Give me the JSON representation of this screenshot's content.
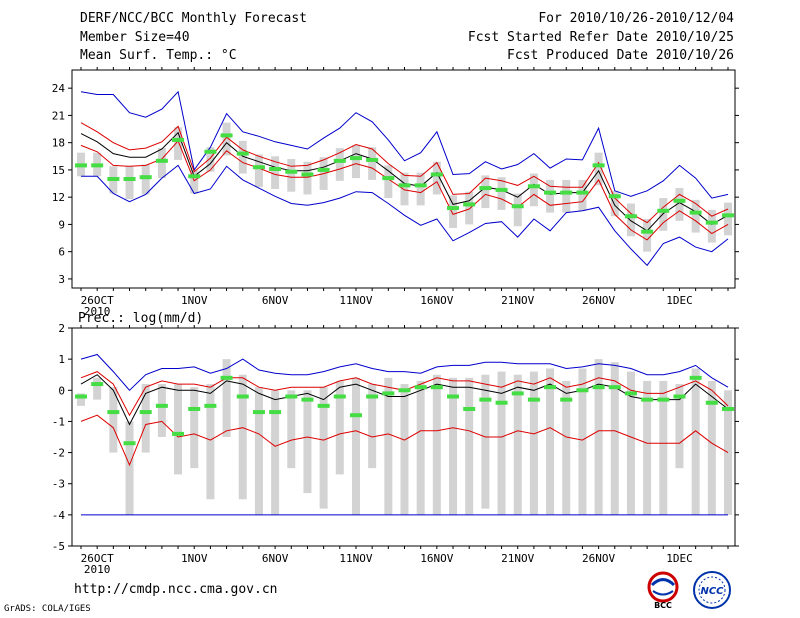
{
  "header": {
    "title": "DERF/NCC/BCC Monthly Forecast",
    "member": "Member Size=40",
    "variable": "Mean Surf. Temp.: °C",
    "period": "For 2010/10/26-2010/12/04",
    "started": "Fcst Started Refer Date 2010/10/25",
    "produced": "Fcst Produced Date 2010/10/26"
  },
  "footer": {
    "url": "http://cmdp.ncc.cma.gov.cn",
    "grads": "GrADS: COLA/IGES",
    "logo1_text": "BCC",
    "logo2_text": "NCC"
  },
  "colors": {
    "envelope": "#0000cc",
    "spread": "#dd0000",
    "mean": "#000000",
    "obs": "#44dd44",
    "bar": "#d3d3d3"
  },
  "chart_data": [
    {
      "type": "line",
      "title": "Mean Surf. Temp.: °C",
      "ylim": [
        2,
        26
      ],
      "yticks": [
        3,
        6,
        9,
        12,
        15,
        18,
        21,
        24
      ],
      "x_range": [
        0,
        40
      ],
      "xticks": [
        {
          "x": 1,
          "label": "26OCT",
          "sub": "2010"
        },
        {
          "x": 7,
          "label": "1NOV"
        },
        {
          "x": 12,
          "label": "6NOV"
        },
        {
          "x": 17,
          "label": "11NOV"
        },
        {
          "x": 22,
          "label": "16NOV"
        },
        {
          "x": 27,
          "label": "21NOV"
        },
        {
          "x": 32,
          "label": "26NOV"
        },
        {
          "x": 37,
          "label": "1DEC"
        }
      ],
      "series": [
        {
          "name": "max",
          "color": "#0000cc",
          "values": [
            23.6,
            23.3,
            23.3,
            21.3,
            20.8,
            21.7,
            23.6,
            15,
            17.5,
            21.2,
            19.2,
            18.7,
            18.1,
            17.7,
            17.3,
            18.5,
            19.6,
            21.3,
            20.3,
            18.3,
            16,
            16.9,
            19.2,
            14.5,
            14.6,
            15.9,
            15.1,
            15.6,
            16.8,
            15.2,
            16.2,
            16.1,
            19.6,
            12.7,
            12.1,
            12.7,
            13.8,
            15.5,
            14.1,
            11.9,
            12.3
          ]
        },
        {
          "name": "upper",
          "color": "#dd0000",
          "values": [
            20.2,
            19.2,
            18,
            17.2,
            17.4,
            18.1,
            19.8,
            14.8,
            16.3,
            18.6,
            17.2,
            16.5,
            15.9,
            15.4,
            15.5,
            16.1,
            16.9,
            17.8,
            17.3,
            15.7,
            14.4,
            14.3,
            15.8,
            12.3,
            12.4,
            14.1,
            13.8,
            13.3,
            14.3,
            13.2,
            13.1,
            13.1,
            15.8,
            11.9,
            10.2,
            9.2,
            10.9,
            12.3,
            11.3,
            9.9,
            10.7
          ]
        },
        {
          "name": "mean",
          "color": "#000000",
          "values": [
            19,
            18.1,
            16.8,
            16.4,
            16.4,
            17.3,
            19.1,
            14.3,
            15.7,
            18,
            16.5,
            15.9,
            15.3,
            14.9,
            14.9,
            15.3,
            16,
            16.8,
            16.2,
            14.9,
            13.5,
            13.2,
            14.7,
            11.2,
            11.6,
            13.1,
            12.8,
            12,
            13.4,
            12.3,
            12.5,
            12.5,
            14.9,
            11.1,
            9.4,
            8.3,
            10.2,
            11.4,
            10.4,
            9,
            10
          ]
        },
        {
          "name": "lower",
          "color": "#dd0000",
          "values": [
            17.7,
            17,
            15.5,
            15.4,
            15.5,
            16.2,
            18.2,
            13.8,
            15,
            17.1,
            15.8,
            15.2,
            14.5,
            14.2,
            14.2,
            14.6,
            15.1,
            15.7,
            15.2,
            14,
            12.8,
            12.5,
            13.7,
            10.1,
            10.7,
            12.3,
            11.8,
            10.9,
            12.3,
            11.1,
            11.3,
            11.5,
            13.9,
            10.1,
            8.4,
            7.3,
            9.2,
            10.5,
            9.4,
            8,
            9
          ]
        },
        {
          "name": "min",
          "color": "#0000cc",
          "values": [
            14.3,
            14.3,
            12.4,
            11.5,
            12.3,
            14.1,
            15.5,
            12.4,
            12.9,
            15.4,
            13.9,
            13,
            12.1,
            11.3,
            11.1,
            11.4,
            11.9,
            12.6,
            12.5,
            11.3,
            10,
            8.9,
            9.6,
            7.2,
            8.1,
            9.1,
            9.3,
            7.6,
            9.6,
            8.3,
            10.3,
            10.5,
            10.9,
            8.3,
            6.3,
            4.5,
            6.9,
            7.6,
            6.5,
            6,
            7.4
          ]
        }
      ],
      "observations": [
        15.5,
        15.5,
        14,
        14,
        14.2,
        16,
        18.3,
        14.3,
        17,
        18.8,
        16.8,
        15.3,
        15.1,
        14.8,
        14.5,
        15,
        16,
        16.3,
        16.1,
        14.1,
        13.3,
        13.3,
        14.5,
        10.8,
        11.2,
        13,
        12.8,
        11,
        13.2,
        12.5,
        12.5,
        12.5,
        15.5,
        12.1,
        9.9,
        8.2,
        10.5,
        11.6,
        10.3,
        9.2,
        10
      ]
    },
    {
      "type": "line",
      "title": "Prec.: log(mm/d)",
      "ylim": [
        -5,
        2
      ],
      "yticks": [
        -5,
        -4,
        -3,
        -2,
        -1,
        0,
        1,
        2
      ],
      "x_range": [
        0,
        40
      ],
      "floor": -4,
      "xticks": [
        {
          "x": 1,
          "label": "26OCT",
          "sub": "2010"
        },
        {
          "x": 7,
          "label": "1NOV"
        },
        {
          "x": 12,
          "label": "6NOV"
        },
        {
          "x": 17,
          "label": "11NOV"
        },
        {
          "x": 22,
          "label": "16NOV"
        },
        {
          "x": 27,
          "label": "21NOV"
        },
        {
          "x": 32,
          "label": "26NOV"
        },
        {
          "x": 37,
          "label": "1DEC"
        }
      ],
      "series": [
        {
          "name": "max",
          "color": "#0000cc",
          "values": [
            1,
            1.15,
            0.6,
            0,
            0.5,
            0.7,
            0.7,
            0.75,
            0.55,
            0.7,
            1,
            0.65,
            0.55,
            0.5,
            0.5,
            0.6,
            0.75,
            0.85,
            0.7,
            0.6,
            0.6,
            0.55,
            0.75,
            0.8,
            0.8,
            0.9,
            0.9,
            0.85,
            0.85,
            0.85,
            0.7,
            0.75,
            0.85,
            0.8,
            0.7,
            0.5,
            0.5,
            0.6,
            0.8,
            0.4,
            0.1
          ]
        },
        {
          "name": "upper",
          "color": "#dd0000",
          "values": [
            0.4,
            0.6,
            0.2,
            -0.8,
            0.1,
            0.3,
            0.2,
            0.2,
            0.1,
            0.4,
            0.4,
            0.1,
            0,
            0.1,
            0.1,
            0.1,
            0.3,
            0.4,
            0.2,
            0.1,
            0,
            0.2,
            0.4,
            0.3,
            0.3,
            0.2,
            0.1,
            0.3,
            0.2,
            0.4,
            0.1,
            0.2,
            0.4,
            0.3,
            0,
            -0.1,
            -0.1,
            0.1,
            0.3,
            0,
            -0.5
          ]
        },
        {
          "name": "mean",
          "color": "#000000",
          "values": [
            0.2,
            0.5,
            0,
            -1.1,
            -0.1,
            0.1,
            0,
            0,
            -0.1,
            0.3,
            0.2,
            -0.1,
            -0.3,
            -0.2,
            -0.1,
            -0.3,
            0.1,
            0.2,
            0,
            -0.2,
            -0.2,
            0,
            0.2,
            0.1,
            0.1,
            0,
            -0.1,
            0.1,
            0,
            0.2,
            -0.1,
            0,
            0.2,
            0.1,
            -0.2,
            -0.3,
            -0.3,
            -0.3,
            0.2,
            -0.2,
            -0.6
          ]
        },
        {
          "name": "lower",
          "color": "#dd0000",
          "values": [
            -1,
            -0.8,
            -1.2,
            -2.4,
            -1.1,
            -1,
            -1.5,
            -1.4,
            -1.6,
            -1.3,
            -1.2,
            -1.4,
            -1.8,
            -1.6,
            -1.5,
            -1.6,
            -1.4,
            -1.3,
            -1.5,
            -1.4,
            -1.6,
            -1.3,
            -1.3,
            -1.2,
            -1.3,
            -1.5,
            -1.5,
            -1.3,
            -1.4,
            -1.2,
            -1.5,
            -1.6,
            -1.3,
            -1.3,
            -1.5,
            -1.7,
            -1.7,
            -1.7,
            -1.3,
            -1.7,
            -2
          ]
        },
        {
          "name": "min",
          "color": "#0000cc",
          "values": [
            -4,
            -4,
            -4,
            -4,
            -4,
            -4,
            -4,
            -4,
            -4,
            -4,
            -4,
            -4,
            -4,
            -4,
            -4,
            -4,
            -4,
            -4,
            -4,
            -4,
            -4,
            -4,
            -4,
            -4,
            -4,
            -4,
            -4,
            -4,
            -4,
            -4,
            -4,
            -4,
            -4,
            -4,
            -4,
            -4,
            -4,
            -4,
            -4,
            -4,
            -4
          ]
        }
      ],
      "observations": [
        -0.2,
        0.2,
        -0.7,
        -1.7,
        -0.7,
        -0.5,
        -1.4,
        -0.6,
        -0.5,
        0.4,
        -0.2,
        -0.7,
        -0.7,
        -0.2,
        -0.3,
        -0.5,
        -0.2,
        -0.8,
        -0.2,
        -0.1,
        0,
        0.1,
        0.1,
        -0.2,
        -0.6,
        -0.3,
        -0.4,
        -0.1,
        -0.3,
        0.1,
        -0.3,
        0,
        0.1,
        0.1,
        -0.1,
        -0.3,
        -0.3,
        -0.2,
        0.4,
        -0.4,
        -0.6
      ],
      "bar_bottoms": [
        -0.5,
        -0.3,
        -2,
        -4,
        -2,
        -1.5,
        -2.7,
        -2.5,
        -3.5,
        -1.5,
        -3.5,
        -4,
        -4,
        -2.5,
        -3.3,
        -3.8,
        -2.7,
        -4,
        -2.5,
        -4,
        -4,
        -4,
        -4,
        -4,
        -4,
        -3.8,
        -4,
        -4,
        -4,
        -4,
        -4,
        -4,
        -4,
        -4,
        -4,
        -4,
        -4,
        -2.5,
        -4,
        -4,
        -4
      ],
      "bar_tops": [
        -0.1,
        0.4,
        0.1,
        -1,
        0.2,
        0.2,
        0.2,
        0.1,
        0.2,
        1,
        0.5,
        0.1,
        0,
        0,
        0,
        0.1,
        0.3,
        0.4,
        0.2,
        0.4,
        0.2,
        0.3,
        0.5,
        0.4,
        0.4,
        0.5,
        0.6,
        0.5,
        0.6,
        0.7,
        0.3,
        0.7,
        1,
        0.9,
        0.6,
        0.3,
        0.3,
        0.2,
        0.7,
        0.3,
        0
      ]
    }
  ]
}
